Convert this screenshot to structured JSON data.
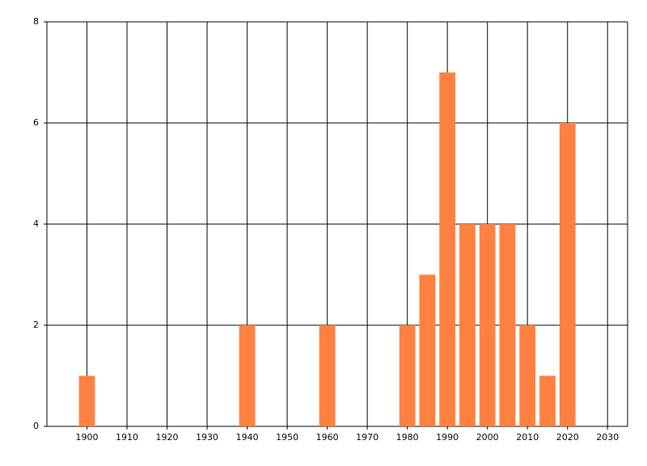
{
  "chart_data": {
    "type": "bar",
    "x": [
      1900,
      1940,
      1960,
      1980,
      1985,
      1990,
      1995,
      2000,
      2005,
      2010,
      2015,
      2020
    ],
    "values": [
      1,
      2,
      2,
      2,
      3,
      7,
      4,
      4,
      4,
      2,
      1,
      6
    ],
    "color": "#ff8040",
    "xlim": [
      1890,
      2035
    ],
    "xticks": [
      1900,
      1910,
      1920,
      1930,
      1940,
      1950,
      1960,
      1970,
      1980,
      1990,
      2000,
      2010,
      2020,
      2030
    ],
    "ylim": [
      0,
      8
    ],
    "yticks": [
      0,
      2,
      4,
      6,
      8
    ],
    "grid": true
  }
}
